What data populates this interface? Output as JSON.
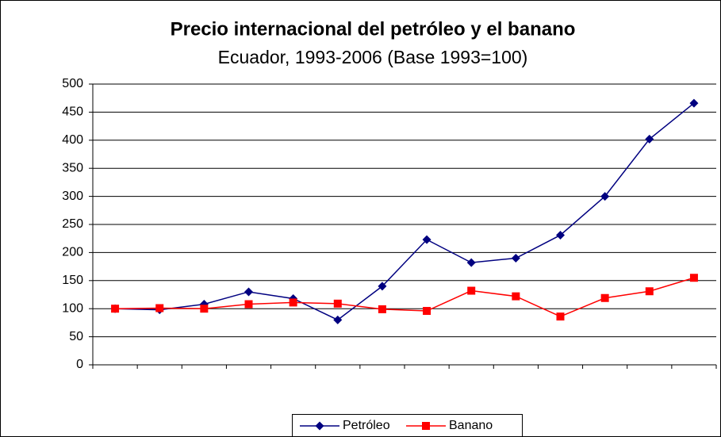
{
  "chart_data": {
    "type": "line",
    "title": "Precio internacional del petróleo y el banano",
    "subtitle": "Ecuador, 1993-2006 (Base 1993=100)",
    "categories": [
      null,
      null,
      null,
      null,
      null,
      null,
      null,
      null,
      null,
      null,
      null,
      null,
      null,
      null
    ],
    "series": [
      {
        "name": "Petróleo",
        "color": "#000080",
        "marker": "diamond",
        "values": [
          100,
          98,
          108,
          130,
          118,
          80,
          140,
          223,
          182,
          190,
          231,
          300,
          402,
          466
        ]
      },
      {
        "name": "Banano",
        "color": "#ff0000",
        "marker": "square",
        "values": [
          100,
          101,
          100,
          108,
          111,
          109,
          99,
          96,
          132,
          122,
          86,
          119,
          131,
          155
        ]
      }
    ],
    "ylim": [
      0,
      500
    ],
    "yticks": [
      0,
      50,
      100,
      150,
      200,
      250,
      300,
      350,
      400,
      450,
      500
    ],
    "grid": true,
    "legend": "bottom"
  }
}
